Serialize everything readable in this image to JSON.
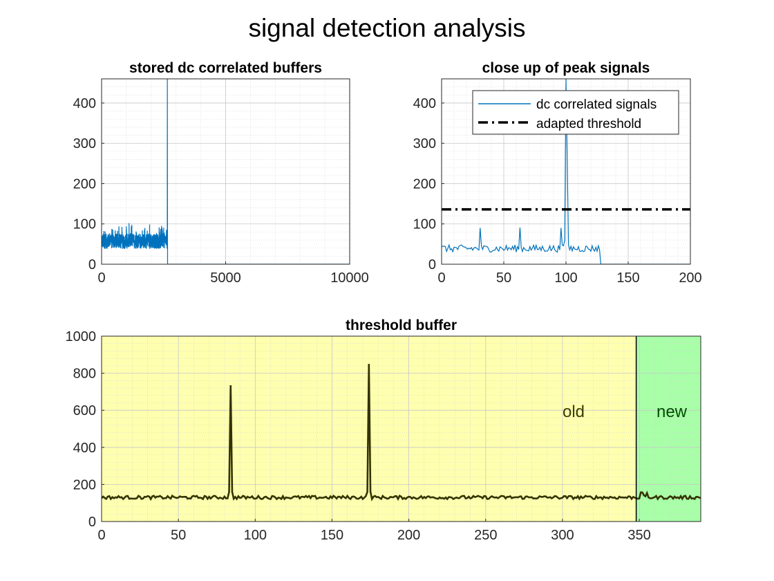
{
  "figure": {
    "title": "signal detection analysis"
  },
  "chart_data": [
    {
      "type": "line",
      "title": "stored dc correlated buffers",
      "xlabel": "",
      "ylabel": "",
      "xlim": [
        0,
        10000
      ],
      "ylim": [
        0,
        460
      ],
      "xticks": [
        0,
        5000,
        10000
      ],
      "yticks": [
        0,
        100,
        200,
        300,
        400
      ],
      "grid": "on, with minor grid",
      "series": [
        {
          "color": "#0072BD",
          "description": "noisy signal between ~30 and ~100 from x=0 to ~2650, a spike to 460 at ~2650, then 0 through 10000",
          "segments": [
            {
              "x_start": 0,
              "x_end": 2650,
              "y_min": 28,
              "y_max": 108
            },
            {
              "x": 2650,
              "y": 460
            },
            {
              "x_start": 2680,
              "x_end": 10000,
              "y": 0
            }
          ]
        }
      ]
    },
    {
      "type": "line",
      "title": "close up of peak signals",
      "xlabel": "",
      "ylabel": "",
      "xlim": [
        0,
        200
      ],
      "ylim": [
        0,
        460
      ],
      "xticks": [
        0,
        50,
        100,
        150,
        200
      ],
      "yticks": [
        0,
        100,
        200,
        300,
        400
      ],
      "grid": "on, with minor grid",
      "legend_position": "top-right",
      "series": [
        {
          "name": "dc correlated signals",
          "color": "#0072BD",
          "style": "solid",
          "peaks": [
            {
              "x": 31,
              "y": 90
            },
            {
              "x": 63,
              "y": 91
            },
            {
              "x": 96,
              "y": 90
            },
            {
              "x": 100,
              "y": 460
            }
          ],
          "baseline_range": [
            30,
            48
          ],
          "drop_to_zero_at": 128
        },
        {
          "name": "adapted threshold",
          "color": "#000000",
          "style": "dash-dot",
          "x": [
            0,
            200
          ],
          "y": [
            136,
            136
          ]
        }
      ]
    },
    {
      "type": "line",
      "title": "threshold buffer",
      "xlabel": "",
      "ylabel": "",
      "xlim": [
        0,
        390
      ],
      "ylim": [
        0,
        1000
      ],
      "xticks": [
        0,
        50,
        100,
        150,
        200,
        250,
        300,
        350
      ],
      "yticks": [
        0,
        200,
        400,
        600,
        800,
        1000
      ],
      "grid": "on, with minor grid",
      "regions": [
        {
          "label": "old",
          "x_start": 0,
          "x_end": 348,
          "color": "#FFFFB0",
          "label_color": "#3D3D00"
        },
        {
          "label": "new",
          "x_start": 348,
          "x_end": 390,
          "color": "#A8FFA8",
          "label_color": "#004D00"
        }
      ],
      "divider_x": 348,
      "series": [
        {
          "color": "#333300",
          "baseline": 130,
          "peaks": [
            {
              "x": 84,
              "y": 735
            },
            {
              "x": 174,
              "y": 850
            }
          ],
          "x_range": [
            0,
            390
          ]
        }
      ]
    }
  ]
}
